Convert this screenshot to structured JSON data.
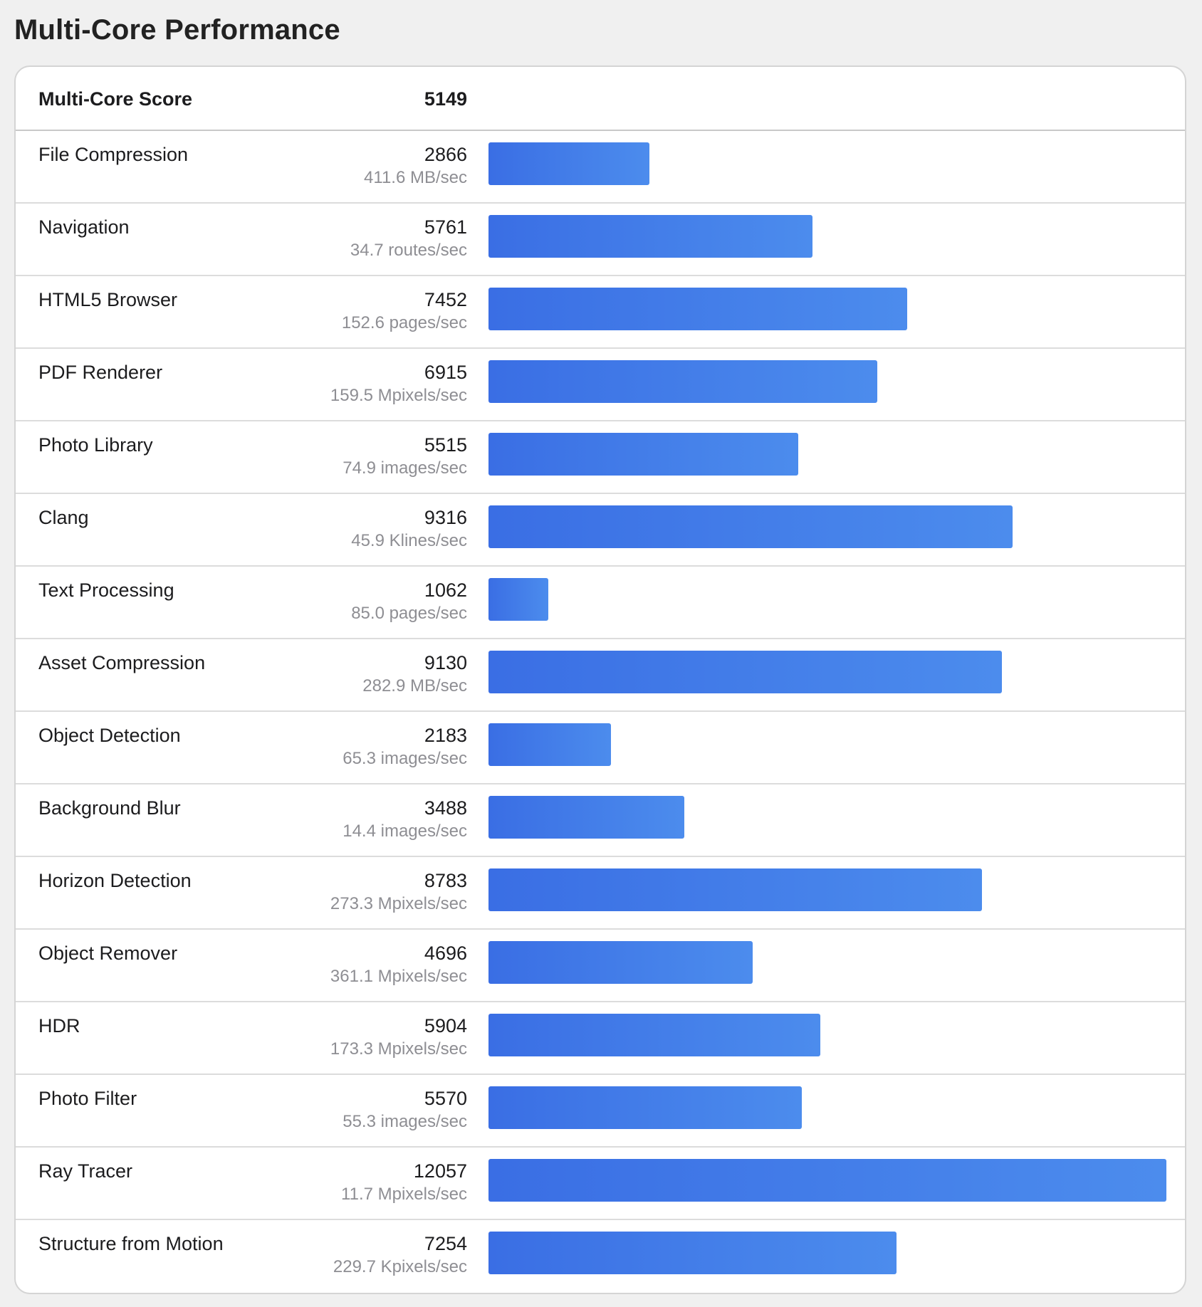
{
  "page_title": "Multi-Core Performance",
  "summary": {
    "label": "Multi-Core Score",
    "score": "5149"
  },
  "bar_color_start": "#3a6ee4",
  "bar_color_end": "#4c8ced",
  "chart_data": {
    "type": "bar",
    "title": "Multi-Core Performance",
    "orientation": "horizontal",
    "xlim": [
      0,
      12057
    ],
    "categories": [
      "File Compression",
      "Navigation",
      "HTML5 Browser",
      "PDF Renderer",
      "Photo Library",
      "Clang",
      "Text Processing",
      "Asset Compression",
      "Object Detection",
      "Background Blur",
      "Horizon Detection",
      "Object Remover",
      "HDR",
      "Photo Filter",
      "Ray Tracer",
      "Structure from Motion"
    ],
    "values": [
      2866,
      5761,
      7452,
      6915,
      5515,
      9316,
      1062,
      9130,
      2183,
      3488,
      8783,
      4696,
      5904,
      5570,
      12057,
      7254
    ]
  },
  "tests": [
    {
      "name": "File Compression",
      "score": "2866",
      "rate": "411.6 MB/sec"
    },
    {
      "name": "Navigation",
      "score": "5761",
      "rate": "34.7 routes/sec"
    },
    {
      "name": "HTML5 Browser",
      "score": "7452",
      "rate": "152.6 pages/sec"
    },
    {
      "name": "PDF Renderer",
      "score": "6915",
      "rate": "159.5 Mpixels/sec"
    },
    {
      "name": "Photo Library",
      "score": "5515",
      "rate": "74.9 images/sec"
    },
    {
      "name": "Clang",
      "score": "9316",
      "rate": "45.9 Klines/sec"
    },
    {
      "name": "Text Processing",
      "score": "1062",
      "rate": "85.0 pages/sec"
    },
    {
      "name": "Asset Compression",
      "score": "9130",
      "rate": "282.9 MB/sec"
    },
    {
      "name": "Object Detection",
      "score": "2183",
      "rate": "65.3 images/sec"
    },
    {
      "name": "Background Blur",
      "score": "3488",
      "rate": "14.4 images/sec"
    },
    {
      "name": "Horizon Detection",
      "score": "8783",
      "rate": "273.3 Mpixels/sec"
    },
    {
      "name": "Object Remover",
      "score": "4696",
      "rate": "361.1 Mpixels/sec"
    },
    {
      "name": "HDR",
      "score": "5904",
      "rate": "173.3 Mpixels/sec"
    },
    {
      "name": "Photo Filter",
      "score": "5570",
      "rate": "55.3 images/sec"
    },
    {
      "name": "Ray Tracer",
      "score": "12057",
      "rate": "11.7 Mpixels/sec"
    },
    {
      "name": "Structure from Motion",
      "score": "7254",
      "rate": "229.7 Kpixels/sec"
    }
  ]
}
